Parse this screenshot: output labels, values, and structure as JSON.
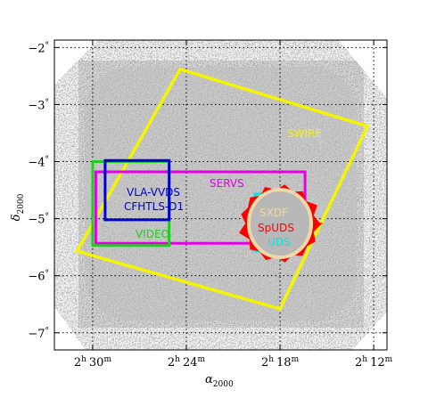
{
  "axes": {
    "xlabel": "α",
    "xlabel_sub": "2000",
    "ylabel": "δ",
    "ylabel_sub": "2000",
    "yticks": [
      {
        "value": -2,
        "label": "−2"
      },
      {
        "value": -3,
        "label": "−3"
      },
      {
        "value": -4,
        "label": "−4"
      },
      {
        "value": -5,
        "label": "−5"
      },
      {
        "value": -6,
        "label": "−6"
      },
      {
        "value": -7,
        "label": "−7"
      }
    ],
    "y_degree_symbol": "°",
    "xticks": [
      {
        "ra_min": 150,
        "h": "2",
        "m": "30"
      },
      {
        "ra_min": 144,
        "h": "2",
        "m": "24"
      },
      {
        "ra_min": 138,
        "h": "2",
        "m": "18"
      },
      {
        "ra_min": 132,
        "h": "2",
        "m": "12"
      }
    ],
    "x_hour_symbol": "h",
    "x_minute_symbol": "m",
    "ra_range_min": [
      152.45,
      131.15
    ],
    "dec_range": [
      -1.87,
      -7.3
    ],
    "grid": "dotted"
  },
  "surveys": [
    {
      "name": "SWIRE",
      "color": "#f5f500",
      "corners": [
        [
          144.4,
          -2.38
        ],
        [
          132.4,
          -3.38
        ],
        [
          138.0,
          -6.58
        ],
        [
          151.0,
          -5.57
        ]
      ]
    },
    {
      "name": "SERVS",
      "color": "#e600e6",
      "corners": [
        [
          149.8,
          -4.18
        ],
        [
          136.4,
          -4.18
        ],
        [
          136.4,
          -5.43
        ],
        [
          149.8,
          -5.43
        ]
      ]
    },
    {
      "name": "VIDEO",
      "color": "#22cc22",
      "corners": [
        [
          150.0,
          -4.0
        ],
        [
          145.1,
          -4.0
        ],
        [
          145.1,
          -5.47
        ],
        [
          150.0,
          -5.47
        ]
      ]
    },
    {
      "name": "VLA-VVDS",
      "color": "#0000cc",
      "corners": [
        [
          149.2,
          -3.98
        ],
        [
          145.1,
          -3.98
        ],
        [
          145.1,
          -5.02
        ],
        [
          149.2,
          -5.02
        ]
      ]
    },
    {
      "name": "CFHTLS-D1",
      "color": "#0000cc",
      "corners": []
    },
    {
      "name": "UDS",
      "color": "#00e6e6",
      "corners": [
        [
          139.6,
          -4.57
        ],
        [
          136.8,
          -4.57
        ],
        [
          136.8,
          -5.57
        ],
        [
          139.6,
          -5.57
        ]
      ]
    },
    {
      "name": "SpUDS",
      "color": "#ff0000",
      "corners": []
    },
    {
      "name": "SXDF",
      "color": "#f0d9a8",
      "corners": []
    }
  ],
  "colors": {
    "background": "#ffffff",
    "sky_gray": "#b8b8b8"
  }
}
